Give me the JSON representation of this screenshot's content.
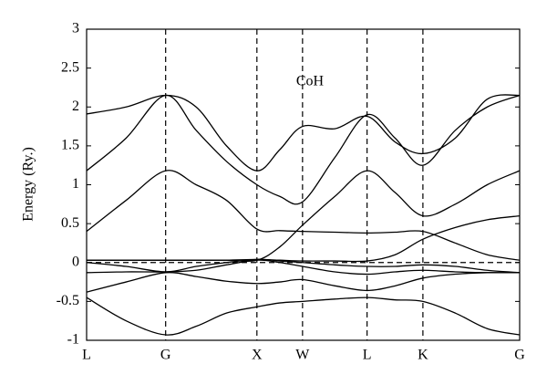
{
  "chart_data": {
    "type": "line",
    "ylabel": "Energy (Ry.)",
    "annotation": "CoH",
    "x": [
      0,
      0.433,
      0.866,
      1.2,
      1.533,
      1.866,
      2.116,
      2.366,
      2.72,
      3.073,
      3.38,
      3.685,
      4.04,
      4.39,
      4.745
    ],
    "xlim": [
      0,
      4.745
    ],
    "xticks": [
      {
        "value": 0,
        "label": "L"
      },
      {
        "value": 0.866,
        "label": "G"
      },
      {
        "value": 1.866,
        "label": "X"
      },
      {
        "value": 2.366,
        "label": "W"
      },
      {
        "value": 3.073,
        "label": "L"
      },
      {
        "value": 3.685,
        "label": "K"
      },
      {
        "value": 4.745,
        "label": "G"
      }
    ],
    "ylim": [
      -1,
      3
    ],
    "yticks": [
      -1,
      -0.5,
      0,
      0.5,
      1,
      1.5,
      2,
      2.5,
      3
    ],
    "fermi_level": 0,
    "color": "#000000",
    "series": [
      {
        "values": [
          -0.45,
          -0.75,
          -0.93,
          -0.82,
          -0.65,
          -0.57,
          -0.52,
          -0.5,
          -0.47,
          -0.45,
          -0.48,
          -0.5,
          -0.65,
          -0.85,
          -0.93
        ]
      },
      {
        "values": [
          -0.38,
          -0.25,
          -0.13,
          -0.18,
          -0.24,
          -0.27,
          -0.25,
          -0.22,
          -0.3,
          -0.36,
          -0.3,
          -0.2,
          -0.15,
          -0.13,
          -0.13
        ]
      },
      {
        "values": [
          -0.13,
          -0.12,
          -0.12,
          -0.1,
          -0.03,
          0.03,
          0,
          -0.05,
          -0.12,
          -0.15,
          -0.12,
          -0.1,
          -0.12,
          -0.13,
          -0.13
        ]
      },
      {
        "values": [
          0,
          -0.05,
          -0.12,
          -0.05,
          0,
          0.04,
          0.02,
          0,
          -0.03,
          -0.05,
          -0.05,
          -0.03,
          -0.05,
          -0.1,
          -0.13
        ]
      },
      {
        "values": [
          0.03,
          0.03,
          0.03,
          0.03,
          0.03,
          0.04,
          0.03,
          0.02,
          0.02,
          0.02,
          0.1,
          0.3,
          0.45,
          0.55,
          0.6
        ]
      },
      {
        "values": [
          0.4,
          0.8,
          1.18,
          1,
          0.8,
          0.43,
          0.41,
          0.4,
          0.39,
          0.38,
          0.39,
          0.4,
          0.25,
          0.1,
          0.03
        ]
      },
      {
        "values": [
          0.03,
          0.03,
          0.03,
          0.03,
          0.03,
          0.03,
          0.2,
          0.48,
          0.85,
          1.18,
          0.9,
          0.6,
          0.75,
          1,
          1.18
        ]
      },
      {
        "values": [
          1.18,
          1.6,
          2.15,
          1.7,
          1.3,
          1,
          0.85,
          0.78,
          1.35,
          1.9,
          1.6,
          1.25,
          1.7,
          2,
          2.15
        ]
      },
      {
        "values": [
          1.91,
          2,
          2.15,
          2,
          1.5,
          1.18,
          1.45,
          1.75,
          1.72,
          1.88,
          1.55,
          1.4,
          1.6,
          2.1,
          2.15
        ]
      }
    ]
  }
}
